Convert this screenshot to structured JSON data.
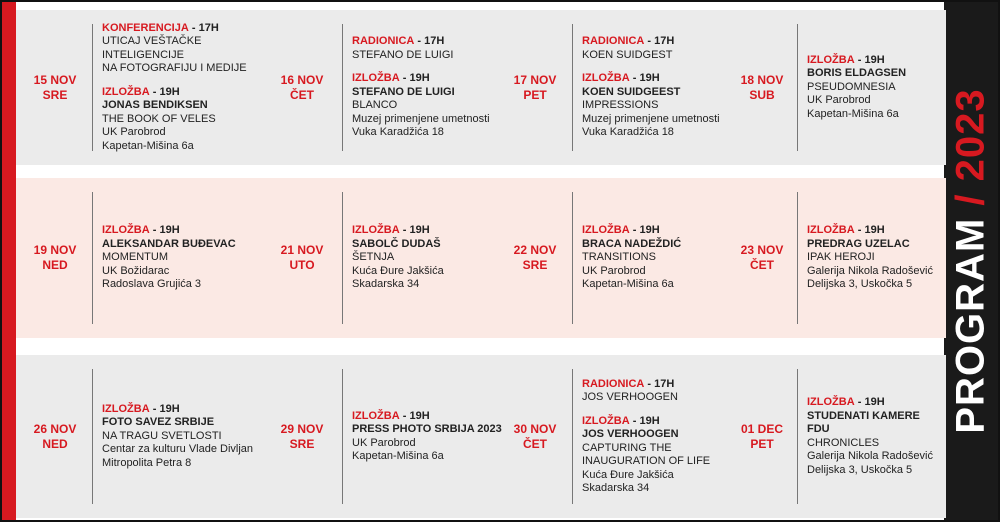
{
  "sidebar": {
    "title": "PROGRAM",
    "year": "/ 2023"
  },
  "rows": [
    {
      "days": [
        {
          "date": "15 NOV",
          "weekday": "SRE",
          "events": [
            {
              "type": "KONFERENCIJA",
              "time": "- 17H",
              "lines": [
                "UTICAJ VEŠTAČKE INTELIGENCIJE",
                "NA FOTOGRAFIJU I MEDIJE"
              ]
            },
            {
              "type": "IZLOŽBA",
              "time": "- 19H",
              "title": "JONAS BENDIKSEN",
              "lines": [
                "THE BOOK OF VELES",
                "UK Parobrod",
                "Kapetan-Mišina 6a"
              ]
            }
          ]
        },
        {
          "date": "16 NOV",
          "weekday": "ČET",
          "events": [
            {
              "type": "RADIONICA",
              "time": "- 17H",
              "lines": [
                "STEFANO DE LUIGI"
              ]
            },
            {
              "type": "IZLOŽBA",
              "time": "- 19H",
              "title": "STEFANO DE LUIGI",
              "lines": [
                "BLANCO",
                "Muzej primenjene umetnosti",
                "Vuka Karadžića 18"
              ]
            }
          ]
        },
        {
          "date": "17 NOV",
          "weekday": "PET",
          "events": [
            {
              "type": "RADIONICA",
              "time": "- 17H",
              "lines": [
                "KOEN SUIDGEST"
              ]
            },
            {
              "type": "IZLOŽBA",
              "time": "- 19H",
              "title": "KOEN SUIDGEEST",
              "lines": [
                "IMPRESSIONS",
                "Muzej primenjene umetnosti",
                "Vuka Karadžića 18"
              ]
            }
          ]
        },
        {
          "date": "18 NOV",
          "weekday": "SUB",
          "events": [
            {
              "type": "IZLOŽBA",
              "time": "- 19H",
              "title": "BORIS ELDAGSEN",
              "lines": [
                "PSEUDOMNESIA",
                "UK Parobrod",
                "Kapetan-Mišina 6a"
              ]
            }
          ]
        }
      ]
    },
    {
      "days": [
        {
          "date": "19 NOV",
          "weekday": "NED",
          "events": [
            {
              "type": "IZLOŽBA",
              "time": "- 19H",
              "title": "ALEKSANDAR BUĐEVAC",
              "lines": [
                "MOMENTUM",
                "UK Božidarac",
                "Radoslava Grujića 3"
              ]
            }
          ]
        },
        {
          "date": "21 NOV",
          "weekday": "UTO",
          "events": [
            {
              "type": "IZLOŽBA",
              "time": "- 19H",
              "title": "SABOLČ DUDAŠ",
              "lines": [
                "ŠETNJA",
                "Kuća Đure Jakšića",
                "Skadarska 34"
              ]
            }
          ]
        },
        {
          "date": "22 NOV",
          "weekday": "SRE",
          "events": [
            {
              "type": "IZLOŽBA",
              "time": "- 19H",
              "title": "BRACA NADEŽDIĆ",
              "lines": [
                "TRANSITIONS",
                "UK Parobrod",
                "Kapetan-Mišina 6a"
              ]
            }
          ]
        },
        {
          "date": "23 NOV",
          "weekday": "ČET",
          "events": [
            {
              "type": "IZLOŽBA",
              "time": "- 19H",
              "title": "PREDRAG UZELAC",
              "lines": [
                "IPAK HEROJI",
                "Galerija Nikola Radošević",
                "Delijska 3, Uskočka 5"
              ]
            }
          ]
        }
      ]
    },
    {
      "days": [
        {
          "date": "26 NOV",
          "weekday": "NED",
          "events": [
            {
              "type": "IZLOŽBA",
              "time": "- 19H",
              "title": "FOTO SAVEZ SRBIJE",
              "lines": [
                "NA TRAGU SVETLOSTI",
                "Centar za kulturu Vlade Divljan",
                "Mitropolita Petra 8"
              ]
            }
          ]
        },
        {
          "date": "29 NOV",
          "weekday": "SRE",
          "events": [
            {
              "type": "IZLOŽBA",
              "time": "- 19H",
              "title": "PRESS PHOTO SRBIJA 2023",
              "lines": [
                "UK Parobrod",
                "Kapetan-Mišina 6a"
              ]
            }
          ]
        },
        {
          "date": "30 NOV",
          "weekday": "ČET",
          "events": [
            {
              "type": "RADIONICA",
              "time": "- 17H",
              "lines": [
                "JOS VERHOOGEN"
              ]
            },
            {
              "type": "IZLOŽBA",
              "time": "- 19H",
              "title": "JOS VERHOOGEN",
              "lines": [
                "CAPTURING THE",
                "INAUGURATION OF LIFE",
                "Kuća Đure Jakšića",
                "Skadarska 34"
              ]
            }
          ]
        },
        {
          "date": "01 DEC",
          "weekday": "PET",
          "events": [
            {
              "type": "IZLOŽBA",
              "time": "- 19H",
              "title": "STUDENATI KAMERE FDU",
              "lines": [
                "CHRONICLES",
                "Galerija Nikola Radošević",
                "Delijska 3, Uskočka 5"
              ]
            }
          ]
        }
      ]
    }
  ]
}
